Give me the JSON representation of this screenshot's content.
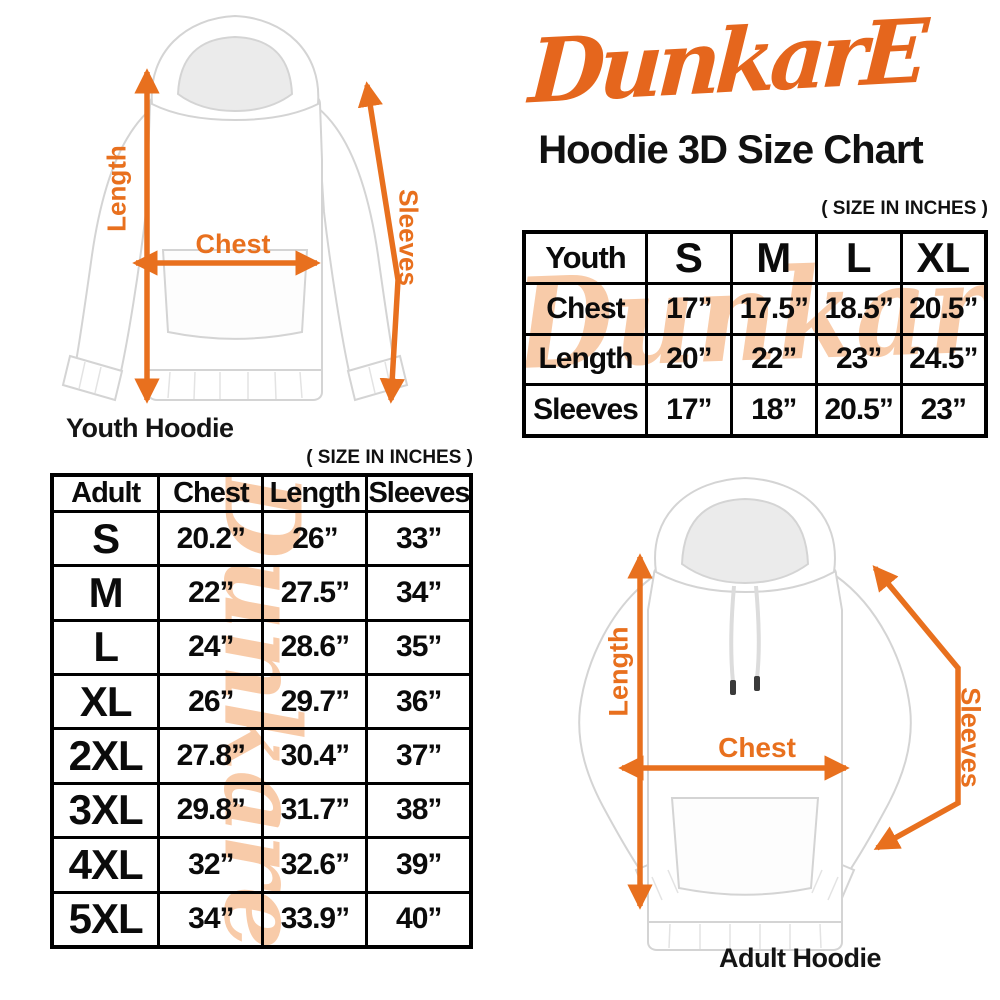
{
  "colors": {
    "accent": "#E8701E",
    "logo_orange": "#E5661D",
    "watermark_peach": "#F8C9A5",
    "table_border": "#000000"
  },
  "logo": {
    "text": "DunkarE"
  },
  "title": "Hoodie 3D Size Chart",
  "size_note": "( SIZE IN INCHES )",
  "watermark_text": "Dunkare",
  "youth_diagram": {
    "caption": "Youth Hoodie",
    "length_label": "Length",
    "chest_label": "Chest",
    "sleeves_label": "Sleeves"
  },
  "adult_diagram": {
    "caption": "Adult Hoodie",
    "length_label": "Length",
    "chest_label": "Chest",
    "sleeves_label": "Sleeves"
  },
  "youth_table": {
    "header": [
      "Youth",
      "S",
      "M",
      "L",
      "XL"
    ],
    "rows": [
      [
        "Chest",
        "17”",
        "17.5”",
        "18.5”",
        "20.5”"
      ],
      [
        "Length",
        "20”",
        "22”",
        "23”",
        "24.5”"
      ],
      [
        "Sleeves",
        "17”",
        "18”",
        "20.5”",
        "23”"
      ]
    ]
  },
  "adult_table": {
    "header": [
      "Adult",
      "Chest",
      "Length",
      "Sleeves"
    ],
    "rows": [
      [
        "S",
        "20.2”",
        "26”",
        "33”"
      ],
      [
        "M",
        "22”",
        "27.5”",
        "34”"
      ],
      [
        "L",
        "24”",
        "28.6”",
        "35”"
      ],
      [
        "XL",
        "26”",
        "29.7”",
        "36”"
      ],
      [
        "2XL",
        "27.8”",
        "30.4”",
        "37”"
      ],
      [
        "3XL",
        "29.8”",
        "31.7”",
        "38”"
      ],
      [
        "4XL",
        "32”",
        "32.6”",
        "39”"
      ],
      [
        "5XL",
        "34”",
        "33.9”",
        "40”"
      ]
    ]
  }
}
